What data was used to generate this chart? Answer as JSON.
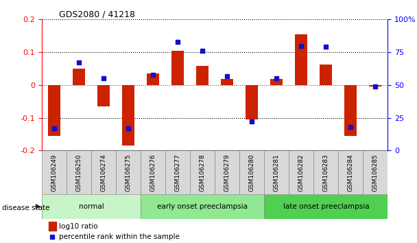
{
  "title": "GDS2080 / 41218",
  "samples": [
    "GSM106249",
    "GSM106250",
    "GSM106274",
    "GSM106275",
    "GSM106276",
    "GSM106277",
    "GSM106278",
    "GSM106279",
    "GSM106280",
    "GSM106281",
    "GSM106282",
    "GSM106283",
    "GSM106284",
    "GSM106285"
  ],
  "log10_ratio": [
    -0.155,
    0.05,
    -0.065,
    -0.185,
    0.035,
    0.105,
    0.058,
    0.018,
    -0.105,
    0.018,
    0.155,
    0.063,
    -0.155,
    -0.005
  ],
  "percentile_rank": [
    17,
    67,
    55,
    17,
    58,
    83,
    76,
    57,
    22,
    55,
    80,
    79,
    18,
    49
  ],
  "groups": [
    {
      "label": "normal",
      "start": 0,
      "end": 3,
      "color": "#c8f5c8"
    },
    {
      "label": "early onset preeclampsia",
      "start": 4,
      "end": 8,
      "color": "#90e890"
    },
    {
      "label": "late onset preeclampsia",
      "start": 9,
      "end": 13,
      "color": "#50d050"
    }
  ],
  "bar_color_red": "#cc2200",
  "bar_color_blue": "#1010cc",
  "ylim_left": [
    -0.2,
    0.2
  ],
  "ylim_right": [
    0,
    100
  ],
  "yticks_left": [
    -0.2,
    -0.1,
    0.0,
    0.1,
    0.2
  ],
  "yticks_right": [
    0,
    25,
    50,
    75,
    100
  ],
  "background_color": "#ffffff",
  "legend_red_label": "log10 ratio",
  "legend_blue_label": "percentile rank within the sample",
  "disease_state_label": "disease state"
}
